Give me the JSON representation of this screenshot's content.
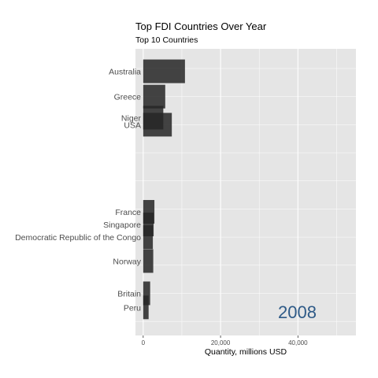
{
  "chart_data": {
    "type": "bar",
    "orientation": "horizontal",
    "title": "Top FDI Countries Over Year",
    "subtitle": "Top 10 Countries",
    "xlabel": "Quantity, millions USD",
    "ylabel": "",
    "xlim": [
      -2000,
      55000
    ],
    "x_ticks": [
      0,
      20000,
      40000
    ],
    "x_tick_labels": [
      "0",
      "20,000",
      "40,000"
    ],
    "grid": true,
    "year_label": "2008",
    "bar_color": "#262626",
    "panel_color": "#e5e5e5",
    "year_color": "#2e5a87",
    "categories": [
      {
        "name": "Australia",
        "value": 10800,
        "rank": 1.1
      },
      {
        "name": "Greece",
        "value": 5700,
        "rank": 2.0
      },
      {
        "name": "Niger",
        "value": 5200,
        "rank": 2.75
      },
      {
        "name": "USA",
        "value": 7400,
        "rank": 3.0
      },
      {
        "name": "France",
        "value": 2900,
        "rank": 6.1
      },
      {
        "name": "Singapore",
        "value": 2700,
        "rank": 6.55
      },
      {
        "name": "Democratic Republic of the Congo",
        "value": 2500,
        "rank": 7.0
      },
      {
        "name": "Norway",
        "value": 2600,
        "rank": 7.85
      },
      {
        "name": "Britain",
        "value": 1800,
        "rank": 9.0
      },
      {
        "name": "Peru",
        "value": 1400,
        "rank": 9.5
      }
    ]
  }
}
